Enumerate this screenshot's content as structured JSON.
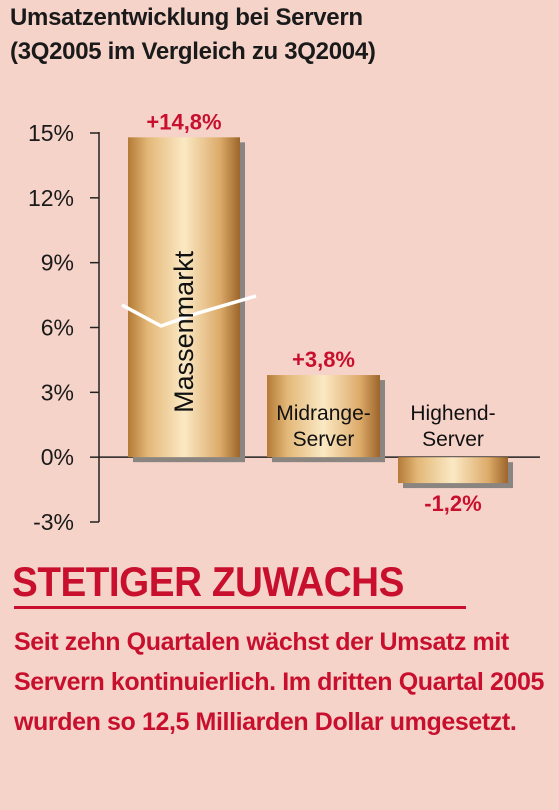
{
  "chart_data": {
    "type": "bar",
    "title": "Umsatzentwicklung bei Servern",
    "subtitle": "(3Q2005 im Vergleich zu 3Q2004)",
    "categories": [
      "Massenmarkt",
      "Midrange-Server",
      "Highend-Server"
    ],
    "category_lines": [
      [
        "Massenmarkt"
      ],
      [
        "Midrange-",
        "Server"
      ],
      [
        "Highend-",
        "Server"
      ]
    ],
    "values": [
      14.8,
      3.8,
      -1.2
    ],
    "value_labels": [
      "+14,8%",
      "+3,8%",
      "-1,2%"
    ],
    "ylim": [
      -3,
      15
    ],
    "yticks": [
      15,
      12,
      9,
      6,
      3,
      0,
      -3
    ],
    "ytick_labels": [
      "15%",
      "12%",
      "9%",
      "6%",
      "3%",
      "0%",
      "-3%"
    ],
    "xlabel": "",
    "ylabel": "",
    "grid": false,
    "axis_break_on": "Massenmarkt",
    "colors": {
      "bar_light": "#f8e3b8",
      "bar_mid": "#d9a766",
      "bar_dark": "#a06a2c",
      "value_label": "#c8102e",
      "axis": "#222222"
    }
  },
  "headline": "STETIGER ZUWACHS",
  "body_text": "Seit zehn Quartalen wächst der Umsatz mit Servern kontinuierlich. Im dritten Quartal 2005 wurden so 12,5 Milliarden Dollar umgesetzt."
}
